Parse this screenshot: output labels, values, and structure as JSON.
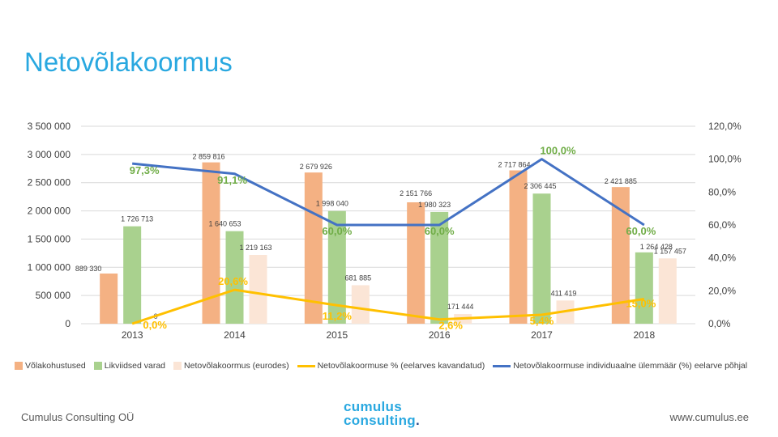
{
  "title": "Netovõlakoormus",
  "chart_data": {
    "type": "bar+line",
    "categories": [
      "2013",
      "2014",
      "2015",
      "2016",
      "2017",
      "2018"
    ],
    "left_axis": {
      "min": 0,
      "max": 3500000,
      "ticks": [
        "0",
        "500 000",
        "1 000 000",
        "1 500 000",
        "2 000 000",
        "2 500 000",
        "3 000 000",
        "3 500 000"
      ]
    },
    "right_axis": {
      "min": 0,
      "max": 1.2,
      "ticks": [
        "0,0%",
        "20,0%",
        "40,0%",
        "60,0%",
        "80,0%",
        "100,0%",
        "120,0%"
      ]
    },
    "bar_series": [
      {
        "name": "Võlakohustused",
        "color": "#f4b183",
        "values": [
          889330,
          2859816,
          2679926,
          2151766,
          2717864,
          2421885
        ],
        "labels": [
          "889 330",
          "2 859 816",
          "2 679 926",
          "2 151 766",
          "2 717 864",
          "2 421 885"
        ]
      },
      {
        "name": "Likviidsed varad",
        "color": "#a9d18e",
        "values": [
          1726713,
          1640653,
          1998040,
          1980323,
          2306445,
          1264428
        ],
        "labels": [
          "1 726 713",
          "1 640 653",
          "1 998 040",
          "1 980 323",
          "2 306 445",
          "1 264 428"
        ]
      },
      {
        "name": "Netovõlakoormus (eurodes)",
        "color": "#fbe5d6",
        "values": [
          0,
          1219163,
          681885,
          171444,
          411419,
          1157457
        ],
        "labels": [
          "0",
          "1 219 163",
          "681 885",
          "171 444",
          "411 419",
          "1 157 457"
        ]
      }
    ],
    "line_series": [
      {
        "name": "Netovõlakoormuse % (eelarves kavandatud)",
        "color": "#ffc000",
        "values": [
          0.0,
          0.206,
          0.112,
          0.026,
          0.054,
          0.15
        ],
        "labels": [
          "0,0%",
          "20,6%",
          "11,2%",
          "2,6%",
          "5,4%",
          "15,0%"
        ]
      },
      {
        "name": "Netovõlakoormuse individuaalne ülemmäär (%) eelarve põhjal",
        "color": "#4472c4",
        "values": [
          0.973,
          0.911,
          0.6,
          0.6,
          1.0,
          0.6
        ],
        "labels": [
          "97,3%",
          "91,1%",
          "60,0%",
          "60,0%",
          "100,0%",
          "60,0%"
        ]
      }
    ]
  },
  "footer": {
    "left": "Cumulus Consulting OÜ",
    "right": "www.cumulus.ee",
    "logo_line1": "cumulus",
    "logo_line2": "consulting",
    "logo_dot": "."
  }
}
